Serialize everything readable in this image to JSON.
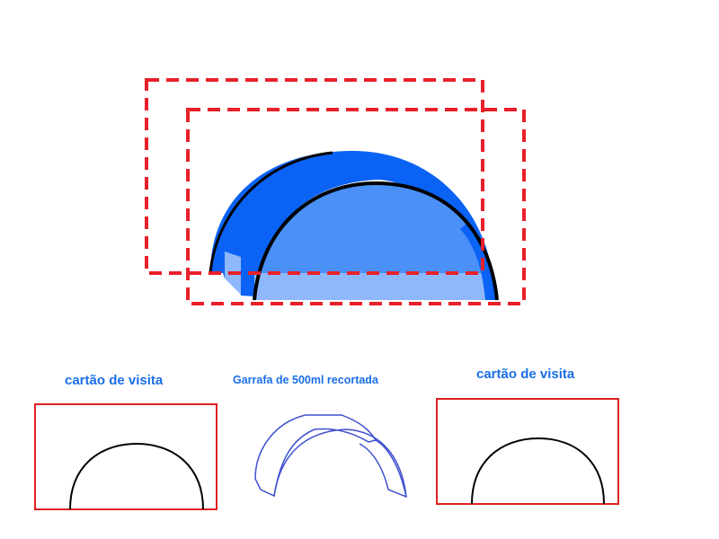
{
  "labels": {
    "card_left": "cartão de visita",
    "bottle": "Garrafa de 500ml recortada",
    "card_right": "cartão de visita"
  },
  "colors": {
    "background": "#ffffff",
    "dashed_border": "#e8202a",
    "card_border": "#e02020",
    "label_text": "#1a6ee8",
    "blue_dark": "#0a63f5",
    "blue_mid": "#4a90f7",
    "blue_light": "#8eb8fb",
    "outline_stroke": "#3f4fd0",
    "arc_stroke": "#000000"
  }
}
